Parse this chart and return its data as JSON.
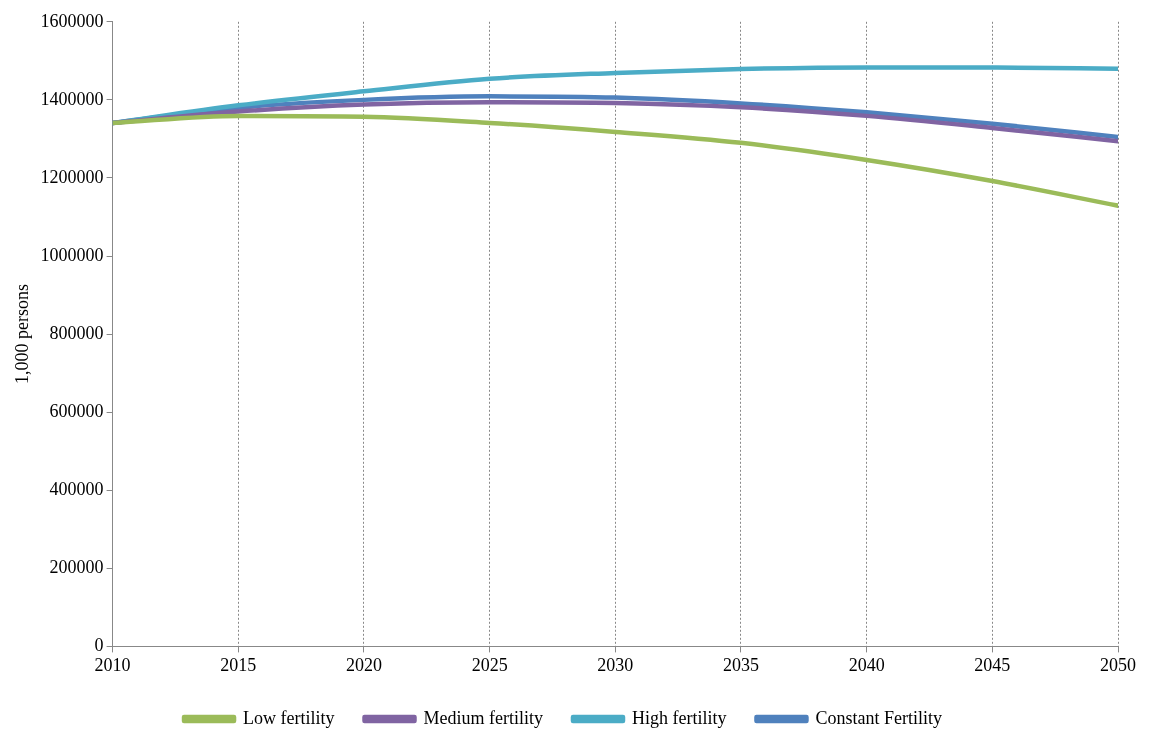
{
  "chart_data": {
    "type": "line",
    "ylabel": "1,000 persons",
    "x": [
      2010,
      2015,
      2020,
      2025,
      2030,
      2035,
      2040,
      2045,
      2050
    ],
    "xlim": [
      2010,
      2050
    ],
    "xticks": [
      2010,
      2015,
      2020,
      2025,
      2030,
      2035,
      2040,
      2045,
      2050
    ],
    "ylim": [
      0,
      1600000
    ],
    "yticks": [
      0,
      200000,
      400000,
      600000,
      800000,
      1000000,
      1200000,
      1400000,
      1600000
    ],
    "grid": "x",
    "legend": "bottom",
    "marker": "none",
    "line_style": "solid",
    "series": [
      {
        "name": "Low fertility",
        "color": "#9bbb59",
        "values": [
          1341000,
          1359000,
          1357000,
          1341000,
          1318000,
          1290000,
          1246000,
          1192000,
          1129000
        ]
      },
      {
        "name": "Medium fertility",
        "color": "#8064a2",
        "values": [
          1341000,
          1370000,
          1388000,
          1394000,
          1392000,
          1381000,
          1359000,
          1328000,
          1294000
        ]
      },
      {
        "name": "High fertility",
        "color": "#4bacc6",
        "values": [
          1341000,
          1386000,
          1422000,
          1454000,
          1469000,
          1479000,
          1483000,
          1483000,
          1480000
        ]
      },
      {
        "name": "Constant Fertility",
        "color": "#4f81bd",
        "values": [
          1341000,
          1380000,
          1400000,
          1409000,
          1406000,
          1391000,
          1368000,
          1339000,
          1305000
        ]
      }
    ]
  }
}
